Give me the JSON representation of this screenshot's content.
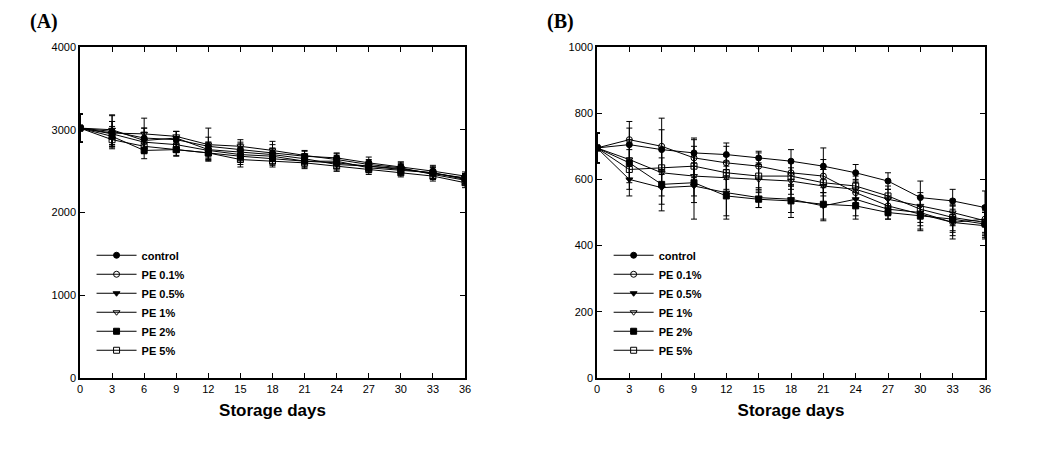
{
  "chart_data": [
    {
      "type": "line",
      "title": "(A)",
      "x_label": "Storage days",
      "x": [
        0,
        3,
        6,
        9,
        12,
        15,
        18,
        21,
        24,
        27,
        30,
        33,
        36
      ],
      "xlim": [
        0,
        36
      ],
      "xticks": [
        0,
        3,
        6,
        9,
        12,
        15,
        18,
        21,
        24,
        27,
        30,
        33,
        36
      ],
      "ylim": [
        0,
        4000
      ],
      "yticks": [
        0,
        1000,
        2000,
        3000,
        4000
      ],
      "grid": false,
      "legend": "lower left",
      "series": [
        {
          "name": "control",
          "color": "#000000",
          "marker": "circle",
          "values": [
            3020,
            2980,
            2900,
            2880,
            2800,
            2760,
            2720,
            2680,
            2660,
            2600,
            2550,
            2500,
            2440
          ],
          "error": [
            170,
            190,
            120,
            100,
            110,
            90,
            100,
            60,
            60,
            70,
            60,
            70,
            50
          ]
        },
        {
          "name": "PE 0.1%",
          "color": "#000000",
          "marker": "open circle",
          "values": [
            3020,
            2950,
            2850,
            2820,
            2750,
            2700,
            2680,
            2620,
            2600,
            2560,
            2520,
            2480,
            2400
          ],
          "error": [
            170,
            150,
            120,
            90,
            100,
            90,
            90,
            70,
            70,
            60,
            60,
            70,
            60
          ]
        },
        {
          "name": "PE 0.5%",
          "color": "#000000",
          "marker": "triangle down",
          "values": [
            3020,
            3000,
            2870,
            2900,
            2760,
            2730,
            2700,
            2650,
            2580,
            2560,
            2530,
            2470,
            2420
          ],
          "error": [
            170,
            180,
            150,
            80,
            90,
            100,
            80,
            60,
            80,
            60,
            60,
            70,
            50
          ]
        },
        {
          "name": "PE 1%",
          "color": "#000000",
          "marker": "open triangle down",
          "values": [
            3020,
            2960,
            2950,
            2920,
            2820,
            2800,
            2750,
            2690,
            2640,
            2580,
            2540,
            2460,
            2390
          ],
          "error": [
            170,
            140,
            190,
            60,
            200,
            80,
            110,
            60,
            70,
            60,
            70,
            60,
            60
          ]
        },
        {
          "name": "PE 2%",
          "color": "#000000",
          "marker": "square",
          "values": [
            3020,
            2920,
            2750,
            2760,
            2720,
            2680,
            2650,
            2620,
            2620,
            2540,
            2510,
            2480,
            2410
          ],
          "error": [
            170,
            120,
            100,
            70,
            90,
            100,
            80,
            70,
            70,
            60,
            60,
            70,
            60
          ]
        },
        {
          "name": "PE 5%",
          "color": "#000000",
          "marker": "open square",
          "values": [
            3020,
            2880,
            2800,
            2760,
            2720,
            2640,
            2620,
            2600,
            2560,
            2520,
            2480,
            2440,
            2360
          ],
          "error": [
            170,
            110,
            90,
            80,
            80,
            90,
            70,
            70,
            60,
            60,
            50,
            60,
            60
          ]
        }
      ]
    },
    {
      "type": "line",
      "title": "(B)",
      "x_label": "Storage days",
      "x": [
        0,
        3,
        6,
        9,
        12,
        15,
        18,
        21,
        24,
        27,
        30,
        33,
        36
      ],
      "xlim": [
        0,
        36
      ],
      "xticks": [
        0,
        3,
        6,
        9,
        12,
        15,
        18,
        21,
        24,
        27,
        30,
        33,
        36
      ],
      "ylim": [
        0,
        1000
      ],
      "yticks": [
        0,
        200,
        400,
        600,
        800,
        1000
      ],
      "grid": false,
      "legend": "lower left",
      "series": [
        {
          "name": "control",
          "color": "#000000",
          "marker": "circle",
          "values": [
            695,
            705,
            690,
            680,
            675,
            665,
            655,
            640,
            620,
            595,
            545,
            535,
            515
          ],
          "error": [
            45,
            50,
            60,
            40,
            35,
            20,
            35,
            55,
            25,
            25,
            50,
            35,
            50
          ]
        },
        {
          "name": "PE 0.1%",
          "color": "#000000",
          "marker": "open circle",
          "values": [
            695,
            720,
            700,
            665,
            650,
            640,
            620,
            610,
            560,
            520,
            495,
            470,
            480
          ],
          "error": [
            45,
            55,
            85,
            60,
            50,
            40,
            40,
            50,
            40,
            30,
            50,
            50,
            40
          ]
        },
        {
          "name": "PE 0.5%",
          "color": "#000000",
          "marker": "triangle down",
          "values": [
            695,
            600,
            575,
            580,
            560,
            545,
            540,
            520,
            540,
            510,
            500,
            470,
            460
          ],
          "error": [
            45,
            50,
            50,
            100,
            70,
            30,
            40,
            40,
            50,
            30,
            50,
            40,
            40
          ]
        },
        {
          "name": "PE 1%",
          "color": "#000000",
          "marker": "open triangle down",
          "values": [
            695,
            660,
            620,
            610,
            605,
            600,
            595,
            580,
            570,
            540,
            520,
            500,
            475
          ],
          "error": [
            45,
            60,
            70,
            60,
            50,
            40,
            40,
            50,
            40,
            30,
            40,
            40,
            40
          ]
        },
        {
          "name": "PE 2%",
          "color": "#000000",
          "marker": "square",
          "values": [
            695,
            650,
            585,
            590,
            550,
            540,
            535,
            525,
            520,
            500,
            490,
            480,
            465
          ],
          "error": [
            45,
            60,
            80,
            60,
            70,
            25,
            50,
            50,
            40,
            20,
            30,
            40,
            40
          ]
        },
        {
          "name": "PE 5%",
          "color": "#000000",
          "marker": "open square",
          "values": [
            695,
            630,
            635,
            640,
            620,
            610,
            610,
            590,
            580,
            550,
            510,
            485,
            470
          ],
          "error": [
            45,
            60,
            60,
            60,
            50,
            40,
            40,
            40,
            40,
            30,
            40,
            40,
            40
          ]
        }
      ]
    }
  ]
}
